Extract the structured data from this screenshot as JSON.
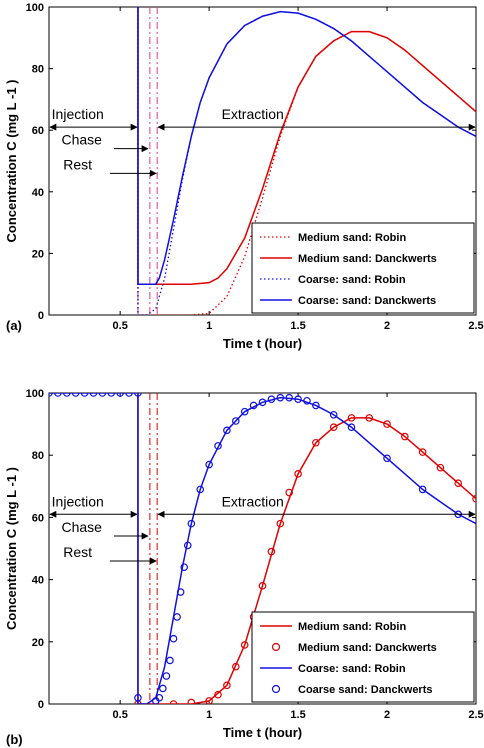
{
  "chart_data": [
    {
      "type": "line",
      "panel_label": "(a)",
      "xlabel": "Time t (hour)",
      "ylabel": "Concentration C (mg L -1 )",
      "xlim": [
        0.1,
        2.5
      ],
      "ylim": [
        0,
        100
      ],
      "xticks": [
        0.5,
        1,
        1.5,
        2,
        2.5
      ],
      "xtick_labels": [
        "0.5",
        "1",
        "1.5",
        "2",
        "2.5"
      ],
      "yticks": [
        0,
        20,
        40,
        60,
        80,
        100
      ],
      "ytick_labels": [
        "0",
        "20",
        "40",
        "60",
        "80",
        "100"
      ],
      "grid": false,
      "legend_position": "bottom-right",
      "annotations": {
        "injection": "Injection",
        "chase": "Chase",
        "rest": "Rest",
        "extraction": "Extraction",
        "arrow_level": 61,
        "injection_span": [
          0.1,
          0.6
        ],
        "chase_span": [
          0.6,
          0.667
        ],
        "rest_span": [
          0.667,
          0.708
        ],
        "extraction_span": [
          0.708,
          2.5
        ],
        "chase_y": 54,
        "rest_y": 46
      },
      "vlines": [
        {
          "x": 0.6,
          "color": "#e83a8a",
          "style": "dashdot"
        },
        {
          "x": 0.667,
          "color": "#e83a8a",
          "style": "dashdot"
        },
        {
          "x": 0.708,
          "color": "#e83a8a",
          "style": "dashdot"
        }
      ],
      "series": [
        {
          "name": "Medium sand: Robin",
          "color": "#e00000",
          "style": "dotted",
          "marker": "none",
          "x": [
            0.6,
            0.6,
            0.7,
            0.8,
            0.9,
            1.0,
            1.1,
            1.2,
            1.3,
            1.4,
            1.5,
            1.6,
            1.7,
            1.8,
            1.9,
            2.0,
            2.1,
            2.2,
            2.3,
            2.4,
            2.5
          ],
          "y": [
            100,
            0,
            0,
            0,
            0,
            0.5,
            6,
            19,
            38,
            58,
            74,
            84,
            89,
            92,
            92,
            90,
            86,
            81,
            76,
            71,
            66
          ]
        },
        {
          "name": "Medium sand: Danckwerts",
          "color": "#e00000",
          "style": "solid",
          "marker": "none",
          "x": [
            0.6,
            0.6,
            0.7,
            0.8,
            0.9,
            1.0,
            1.05,
            1.1,
            1.2,
            1.3,
            1.4,
            1.5,
            1.6,
            1.7,
            1.8,
            1.9,
            2.0,
            2.1,
            2.2,
            2.3,
            2.4,
            2.5
          ],
          "y": [
            100,
            10,
            10,
            10,
            10,
            10.5,
            12,
            15,
            25,
            41,
            59,
            74,
            84,
            89,
            92,
            92,
            90,
            86,
            81,
            76,
            71,
            66
          ]
        },
        {
          "name": "Coarse: sand: Robin",
          "color": "#1010e0",
          "style": "dotted",
          "marker": "none",
          "x": [
            0.6,
            0.6,
            0.65,
            0.7,
            0.75,
            0.8,
            0.85,
            0.9,
            0.95,
            1.0,
            1.1,
            1.2,
            1.3,
            1.4,
            1.5,
            1.6,
            1.7,
            1.8,
            1.9,
            2.0,
            2.1,
            2.2,
            2.3,
            2.4,
            2.5
          ],
          "y": [
            100,
            0,
            0,
            2,
            12,
            28,
            44,
            58,
            69,
            77,
            88,
            94,
            97,
            98.5,
            98,
            96,
            93,
            89,
            84,
            79,
            74,
            69,
            65,
            61,
            58
          ]
        },
        {
          "name": "Coarse: sand: Danckwerts",
          "color": "#1010e0",
          "style": "solid",
          "marker": "none",
          "x": [
            0.6,
            0.6,
            0.7,
            0.72,
            0.75,
            0.8,
            0.85,
            0.9,
            0.95,
            1.0,
            1.1,
            1.2,
            1.3,
            1.4,
            1.5,
            1.6,
            1.7,
            1.8,
            1.9,
            2.0,
            2.1,
            2.2,
            2.3,
            2.4,
            2.5
          ],
          "y": [
            100,
            10,
            10,
            12,
            18,
            31,
            45,
            58,
            69,
            77,
            88,
            94,
            97,
            98.5,
            98,
            96,
            93,
            89,
            84,
            79,
            74,
            69,
            65,
            61,
            58
          ]
        }
      ]
    },
    {
      "type": "line",
      "panel_label": "(b)",
      "xlabel": "Time t (hour)",
      "ylabel": "Concentration C (mg L -1 )",
      "xlim": [
        0.1,
        2.5
      ],
      "ylim": [
        0,
        100
      ],
      "xticks": [
        0.5,
        1,
        1.5,
        2,
        2.5
      ],
      "xtick_labels": [
        "0.5",
        "1",
        "1.5",
        "2",
        "2.5"
      ],
      "yticks": [
        0,
        20,
        40,
        60,
        80,
        100
      ],
      "ytick_labels": [
        "0",
        "20",
        "40",
        "60",
        "80",
        "100"
      ],
      "grid": false,
      "legend_position": "bottom-right",
      "annotations": {
        "injection": "Injection",
        "chase": "Chase",
        "rest": "Rest",
        "extraction": "Extraction",
        "arrow_level": 61,
        "injection_span": [
          0.1,
          0.6
        ],
        "chase_span": [
          0.6,
          0.667
        ],
        "rest_span": [
          0.667,
          0.708
        ],
        "extraction_span": [
          0.708,
          2.5
        ],
        "chase_y": 54,
        "rest_y": 46
      },
      "vlines": [
        {
          "x": 0.6,
          "color": "#e00000",
          "style": "dashdot"
        },
        {
          "x": 0.667,
          "color": "#e00000",
          "style": "dashdot"
        },
        {
          "x": 0.708,
          "color": "#e00000",
          "style": "dashdot"
        }
      ],
      "series": [
        {
          "name": "Medium sand: Robin",
          "color": "#e00000",
          "style": "solid",
          "marker": "none",
          "x": [
            0.6,
            0.6,
            0.7,
            0.8,
            0.9,
            1.0,
            1.1,
            1.2,
            1.3,
            1.4,
            1.5,
            1.6,
            1.7,
            1.8,
            1.9,
            2.0,
            2.1,
            2.2,
            2.3,
            2.4,
            2.5
          ],
          "y": [
            100,
            0,
            0,
            0,
            0,
            1,
            6,
            19,
            38,
            58,
            74,
            84,
            89,
            92,
            92,
            90,
            86,
            81,
            76,
            71,
            66
          ]
        },
        {
          "name": "Medium sand: Danckwerts",
          "color": "#e00000",
          "style": "none",
          "marker": "circle",
          "x": [
            0.6,
            0.8,
            0.9,
            1.0,
            1.05,
            1.1,
            1.15,
            1.2,
            1.25,
            1.3,
            1.35,
            1.4,
            1.45,
            1.5,
            1.6,
            1.7,
            1.8,
            1.9,
            2.0,
            2.1,
            2.2,
            2.3,
            2.4,
            2.5
          ],
          "y": [
            0,
            0,
            0.5,
            1,
            3,
            6,
            12,
            19,
            28,
            38,
            49,
            58,
            68,
            74,
            84,
            89,
            92,
            92,
            90,
            86,
            81,
            76,
            71,
            66
          ]
        },
        {
          "name": "Coarse: sand: Robin",
          "color": "#1010e0",
          "style": "solid",
          "marker": "none",
          "x": [
            0.1,
            0.6,
            0.6,
            0.65,
            0.7,
            0.75,
            0.8,
            0.85,
            0.9,
            0.95,
            1.0,
            1.1,
            1.2,
            1.3,
            1.4,
            1.5,
            1.6,
            1.7,
            1.8,
            1.9,
            2.0,
            2.1,
            2.2,
            2.3,
            2.4,
            2.5
          ],
          "y": [
            100,
            100,
            0,
            0,
            2,
            12,
            28,
            44,
            58,
            69,
            77,
            88,
            94,
            97,
            98.5,
            98,
            96,
            93,
            89,
            84,
            79,
            74,
            69,
            65,
            61,
            58
          ]
        },
        {
          "name": "Coarse sand: Danckwerts",
          "color": "#1010e0",
          "style": "none",
          "marker": "circle",
          "x": [
            0.1,
            0.15,
            0.2,
            0.25,
            0.3,
            0.35,
            0.4,
            0.45,
            0.5,
            0.55,
            0.6,
            0.6,
            0.7,
            0.72,
            0.74,
            0.76,
            0.78,
            0.8,
            0.82,
            0.84,
            0.86,
            0.88,
            0.9,
            0.95,
            1.0,
            1.05,
            1.1,
            1.15,
            1.2,
            1.25,
            1.3,
            1.35,
            1.4,
            1.45,
            1.5,
            1.55,
            1.6,
            1.7,
            1.8,
            2.0,
            2.2,
            2.4
          ],
          "y": [
            100,
            100,
            100,
            100,
            100,
            100,
            100,
            100,
            100,
            100,
            100,
            2,
            1,
            2,
            5,
            9,
            14,
            21,
            28,
            36,
            44,
            51,
            58,
            69,
            77,
            83,
            88,
            91,
            94,
            96,
            97,
            98,
            98.5,
            98.5,
            98,
            97.5,
            96,
            93,
            89,
            79,
            69,
            61
          ]
        }
      ]
    }
  ]
}
